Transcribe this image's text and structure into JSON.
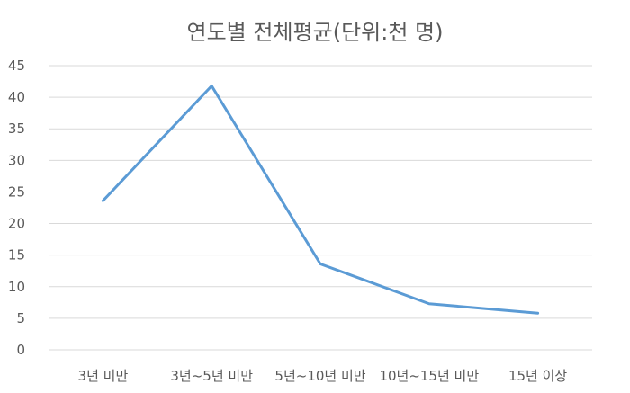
{
  "chart_data": {
    "type": "line",
    "title": "연도별 전체평균(단위:천 명)",
    "xlabel": "",
    "ylabel": "",
    "categories": [
      "3년 미만",
      "3년~5년 미만",
      "5년~10년 미만",
      "10년~15년 미만",
      "15년 이상"
    ],
    "series": [
      {
        "values": [
          23.6,
          41.8,
          13.6,
          7.3,
          5.8
        ],
        "color": "#5b9bd5"
      }
    ],
    "ylim": [
      0,
      45
    ],
    "yticks": [
      "0",
      "5",
      "10",
      "15",
      "20",
      "25",
      "30",
      "35",
      "40",
      "45"
    ],
    "grid": true,
    "legend": "none"
  }
}
